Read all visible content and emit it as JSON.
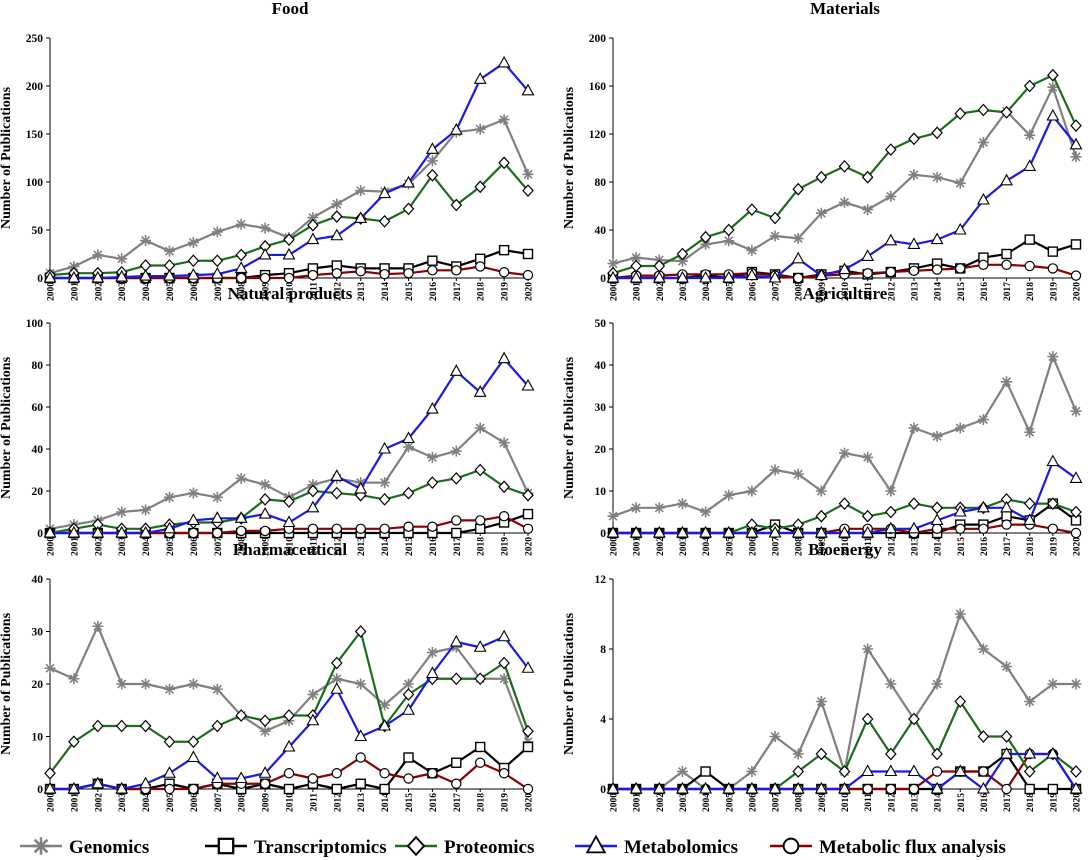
{
  "legend": [
    {
      "key": "genomics",
      "label": "Genomics"
    },
    {
      "key": "transcriptomics",
      "label": "Transcriptomics"
    },
    {
      "key": "proteomics",
      "label": "Proteomics"
    },
    {
      "key": "metabolomics",
      "label": "Metabolomics"
    },
    {
      "key": "flux",
      "label": "Metabolic flux analysis"
    }
  ],
  "series_styles": {
    "genomics": {
      "color": "#808080",
      "marker": "asterisk"
    },
    "transcriptomics": {
      "color": "#000000",
      "marker": "square"
    },
    "proteomics": {
      "color": "#1a6e1a",
      "marker": "diamond"
    },
    "metabolomics": {
      "color": "#1a1ae6",
      "marker": "triangle"
    },
    "flux": {
      "color": "#8b0000",
      "marker": "circle"
    }
  },
  "chart_data": [
    {
      "type": "line",
      "title": "Food",
      "ylabel": "Number of Publications",
      "xlabel": "",
      "ylim": [
        0,
        250
      ],
      "yticks": [
        0,
        50,
        100,
        150,
        200,
        250
      ],
      "x": [
        "2000",
        "2001",
        "2002",
        "2003",
        "2004",
        "2005",
        "2006",
        "2007",
        "2008",
        "2009",
        "2010",
        "2011",
        "2012",
        "2013",
        "2014",
        "2015",
        "2016",
        "2017",
        "2018",
        "2019",
        "2020"
      ],
      "series": [
        {
          "key": "genomics",
          "name": "Genomics",
          "values": [
            5,
            12,
            24,
            20,
            39,
            28,
            37,
            48,
            56,
            52,
            42,
            63,
            77,
            91,
            90,
            98,
            122,
            152,
            155,
            165,
            108
          ]
        },
        {
          "key": "transcriptomics",
          "name": "Transcriptomics",
          "values": [
            0,
            0,
            0,
            0,
            0,
            0,
            0,
            0,
            0,
            3,
            5,
            10,
            13,
            10,
            10,
            10,
            18,
            12,
            20,
            29,
            25
          ]
        },
        {
          "key": "proteomics",
          "name": "Proteomics",
          "values": [
            3,
            5,
            5,
            6,
            13,
            13,
            18,
            18,
            24,
            33,
            40,
            55,
            64,
            62,
            59,
            72,
            107,
            76,
            95,
            120,
            91
          ]
        },
        {
          "key": "metabolomics",
          "name": "Metabolomics",
          "values": [
            0,
            0,
            0,
            1,
            2,
            2,
            3,
            4,
            10,
            24,
            24,
            40,
            44,
            62,
            88,
            99,
            134,
            154,
            207,
            224,
            195
          ]
        },
        {
          "key": "flux",
          "name": "Metabolic flux analysis",
          "values": [
            0,
            0,
            0,
            0,
            0,
            0,
            0,
            0,
            0,
            0,
            0,
            3,
            5,
            7,
            4,
            5,
            8,
            8,
            12,
            6,
            3
          ]
        }
      ]
    },
    {
      "type": "line",
      "title": "Materials",
      "ylabel": "Number of Publications",
      "xlabel": "",
      "ylim": [
        0,
        200
      ],
      "yticks": [
        0,
        40,
        80,
        120,
        160,
        200
      ],
      "x": [
        "2000",
        "2001",
        "2002",
        "2003",
        "2004",
        "2005",
        "2006",
        "2007",
        "2008",
        "2009",
        "2010",
        "2011",
        "2012",
        "2013",
        "2014",
        "2015",
        "2016",
        "2017",
        "2018",
        "2019",
        "2020"
      ],
      "series": [
        {
          "key": "genomics",
          "name": "Genomics",
          "values": [
            12,
            17,
            15,
            14,
            28,
            31,
            23,
            35,
            33,
            54,
            63,
            57,
            68,
            86,
            84,
            79,
            113,
            139,
            119,
            159,
            101
          ]
        },
        {
          "key": "transcriptomics",
          "name": "Transcriptomics",
          "values": [
            0,
            0,
            0,
            0,
            2,
            0,
            5,
            3,
            0,
            3,
            6,
            3,
            5,
            8,
            12,
            8,
            17,
            20,
            32,
            22,
            28
          ]
        },
        {
          "key": "proteomics",
          "name": "Proteomics",
          "values": [
            4,
            10,
            10,
            20,
            34,
            40,
            57,
            50,
            74,
            84,
            93,
            84,
            107,
            116,
            121,
            137,
            140,
            138,
            160,
            169,
            127
          ]
        },
        {
          "key": "metabolomics",
          "name": "Metabolomics",
          "values": [
            0,
            0,
            0,
            0,
            0,
            0,
            2,
            0,
            16,
            2,
            7,
            18,
            31,
            28,
            32,
            40,
            65,
            81,
            93,
            135,
            111
          ]
        },
        {
          "key": "flux",
          "name": "Metabolic flux analysis",
          "values": [
            0,
            2,
            2,
            3,
            3,
            3,
            4,
            2,
            0,
            2,
            3,
            4,
            5,
            6,
            7,
            8,
            11,
            11,
            10,
            8,
            2
          ]
        }
      ]
    },
    {
      "type": "line",
      "title": "Natural products",
      "ylabel": "Number of Publications",
      "xlabel": "",
      "ylim": [
        0,
        100
      ],
      "yticks": [
        0,
        20,
        40,
        60,
        80,
        100
      ],
      "x": [
        "2000",
        "2001",
        "2002",
        "2003",
        "2004",
        "2005",
        "2006",
        "2007",
        "2008",
        "2009",
        "2010",
        "2011",
        "2012",
        "2013",
        "2014",
        "2015",
        "2016",
        "2017",
        "2018",
        "2019",
        "2020"
      ],
      "series": [
        {
          "key": "genomics",
          "name": "Genomics",
          "values": [
            2,
            4,
            6,
            10,
            11,
            17,
            19,
            17,
            26,
            23,
            17,
            23,
            26,
            24,
            24,
            41,
            36,
            39,
            50,
            43,
            19
          ]
        },
        {
          "key": "transcriptomics",
          "name": "Transcriptomics",
          "values": [
            0,
            0,
            0,
            0,
            0,
            0,
            0,
            0,
            0,
            0,
            0,
            0,
            0,
            0,
            0,
            0,
            0,
            0,
            2,
            5,
            9
          ]
        },
        {
          "key": "proteomics",
          "name": "Proteomics",
          "values": [
            0,
            2,
            4,
            2,
            2,
            4,
            5,
            5,
            7,
            16,
            15,
            20,
            19,
            18,
            16,
            19,
            24,
            26,
            30,
            22,
            18
          ]
        },
        {
          "key": "metabolomics",
          "name": "Metabolomics",
          "values": [
            0,
            0,
            0,
            0,
            0,
            2,
            6,
            7,
            7,
            9,
            5,
            12,
            27,
            21,
            40,
            45,
            59,
            77,
            67,
            83,
            70
          ]
        },
        {
          "key": "flux",
          "name": "Metabolic flux analysis",
          "values": [
            0,
            0,
            0,
            0,
            0,
            0,
            0,
            0,
            1,
            1,
            2,
            2,
            2,
            2,
            2,
            3,
            3,
            6,
            6,
            8,
            2
          ]
        }
      ]
    },
    {
      "type": "line",
      "title": "Agriculture",
      "ylabel": "Number of Publications",
      "xlabel": "",
      "ylim": [
        0,
        50
      ],
      "yticks": [
        0,
        10,
        20,
        30,
        40,
        50
      ],
      "x": [
        "2000",
        "2001",
        "2002",
        "2003",
        "2004",
        "2005",
        "2006",
        "2007",
        "2008",
        "2009",
        "2010",
        "2011",
        "2012",
        "2013",
        "2014",
        "2015",
        "2016",
        "2017",
        "2018",
        "2019",
        "2020"
      ],
      "series": [
        {
          "key": "genomics",
          "name": "Genomics",
          "values": [
            4,
            6,
            6,
            7,
            5,
            9,
            10,
            15,
            14,
            10,
            19,
            18,
            10,
            25,
            23,
            25,
            27,
            36,
            24,
            42,
            29
          ]
        },
        {
          "key": "transcriptomics",
          "name": "Transcriptomics",
          "values": [
            0,
            0,
            0,
            0,
            0,
            0,
            0,
            2,
            0,
            0,
            0,
            0,
            0,
            0,
            0,
            2,
            2,
            4,
            3,
            7,
            3
          ]
        },
        {
          "key": "proteomics",
          "name": "Proteomics",
          "values": [
            0,
            0,
            0,
            0,
            0,
            0,
            2,
            1,
            2,
            4,
            7,
            4,
            5,
            7,
            6,
            6,
            6,
            8,
            7,
            7,
            5
          ]
        },
        {
          "key": "metabolomics",
          "name": "Metabolomics",
          "values": [
            0,
            0,
            0,
            0,
            0,
            0,
            0,
            0,
            0,
            0,
            0,
            0,
            1,
            1,
            3,
            5,
            6,
            6,
            3,
            17,
            13
          ]
        },
        {
          "key": "flux",
          "name": "Metabolic flux analysis",
          "values": [
            0,
            0,
            0,
            0,
            0,
            0,
            0,
            0,
            0,
            0,
            1,
            1,
            1,
            0,
            1,
            1,
            1,
            2,
            2,
            1,
            0
          ]
        }
      ]
    },
    {
      "type": "line",
      "title": "Pharmaceutical",
      "ylabel": "Number of Publications",
      "xlabel": "",
      "ylim": [
        0,
        40
      ],
      "yticks": [
        0,
        10,
        20,
        30,
        40
      ],
      "x": [
        "2000",
        "2001",
        "2002",
        "2003",
        "2004",
        "2005",
        "2006",
        "2007",
        "2008",
        "2009",
        "2010",
        "2011",
        "2012",
        "2013",
        "2014",
        "2015",
        "2016",
        "2017",
        "2018",
        "2019",
        "2020"
      ],
      "series": [
        {
          "key": "genomics",
          "name": "Genomics",
          "values": [
            23,
            21,
            31,
            20,
            20,
            19,
            20,
            19,
            14,
            11,
            13,
            18,
            21,
            20,
            16,
            20,
            26,
            27,
            21,
            21,
            9
          ]
        },
        {
          "key": "transcriptomics",
          "name": "Transcriptomics",
          "values": [
            0,
            0,
            1,
            0,
            0,
            1,
            0,
            1,
            0,
            1,
            0,
            1,
            0,
            1,
            0,
            6,
            3,
            5,
            8,
            4,
            8
          ]
        },
        {
          "key": "proteomics",
          "name": "Proteomics",
          "values": [
            3,
            9,
            12,
            12,
            12,
            9,
            9,
            12,
            14,
            13,
            14,
            14,
            24,
            30,
            12,
            18,
            21,
            21,
            21,
            24,
            11
          ]
        },
        {
          "key": "metabolomics",
          "name": "Metabolomics",
          "values": [
            0,
            0,
            1,
            0,
            1,
            3,
            6,
            2,
            2,
            3,
            8,
            13,
            19,
            10,
            12,
            15,
            22,
            28,
            27,
            29,
            23
          ]
        },
        {
          "key": "flux",
          "name": "Metabolic flux analysis",
          "values": [
            0,
            0,
            1,
            0,
            0,
            0,
            0,
            1,
            1,
            1,
            3,
            2,
            3,
            6,
            3,
            2,
            3,
            1,
            5,
            3,
            0
          ]
        }
      ]
    },
    {
      "type": "line",
      "title": "Bioenergy",
      "ylabel": "Number of Publications",
      "xlabel": "",
      "ylim": [
        0,
        12
      ],
      "yticks": [
        0,
        4,
        8,
        12
      ],
      "x": [
        "2000",
        "2001",
        "2002",
        "2003",
        "2004",
        "2005",
        "2006",
        "2007",
        "2008",
        "2009",
        "2010",
        "2011",
        "2012",
        "2013",
        "2014",
        "2015",
        "2016",
        "2017",
        "2018",
        "2019",
        "2020"
      ],
      "series": [
        {
          "key": "genomics",
          "name": "Genomics",
          "values": [
            0,
            0,
            0,
            1,
            0,
            0,
            1,
            3,
            2,
            5,
            1,
            8,
            6,
            4,
            6,
            10,
            8,
            7,
            5,
            6,
            6
          ]
        },
        {
          "key": "transcriptomics",
          "name": "Transcriptomics",
          "values": [
            0,
            0,
            0,
            0,
            1,
            0,
            0,
            0,
            0,
            0,
            0,
            0,
            0,
            0,
            0,
            1,
            1,
            2,
            0,
            0,
            0
          ]
        },
        {
          "key": "proteomics",
          "name": "Proteomics",
          "values": [
            0,
            0,
            0,
            0,
            0,
            0,
            0,
            0,
            1,
            2,
            1,
            4,
            2,
            4,
            2,
            5,
            3,
            3,
            1,
            2,
            1
          ]
        },
        {
          "key": "metabolomics",
          "name": "Metabolomics",
          "values": [
            0,
            0,
            0,
            0,
            0,
            0,
            0,
            0,
            0,
            0,
            0,
            1,
            1,
            1,
            0,
            1,
            0,
            2,
            2,
            2,
            0
          ]
        },
        {
          "key": "flux",
          "name": "Metabolic flux analysis",
          "values": [
            0,
            0,
            0,
            0,
            0,
            0,
            0,
            0,
            0,
            0,
            0,
            0,
            0,
            0,
            1,
            1,
            1,
            0,
            2,
            2,
            0
          ]
        }
      ]
    }
  ]
}
